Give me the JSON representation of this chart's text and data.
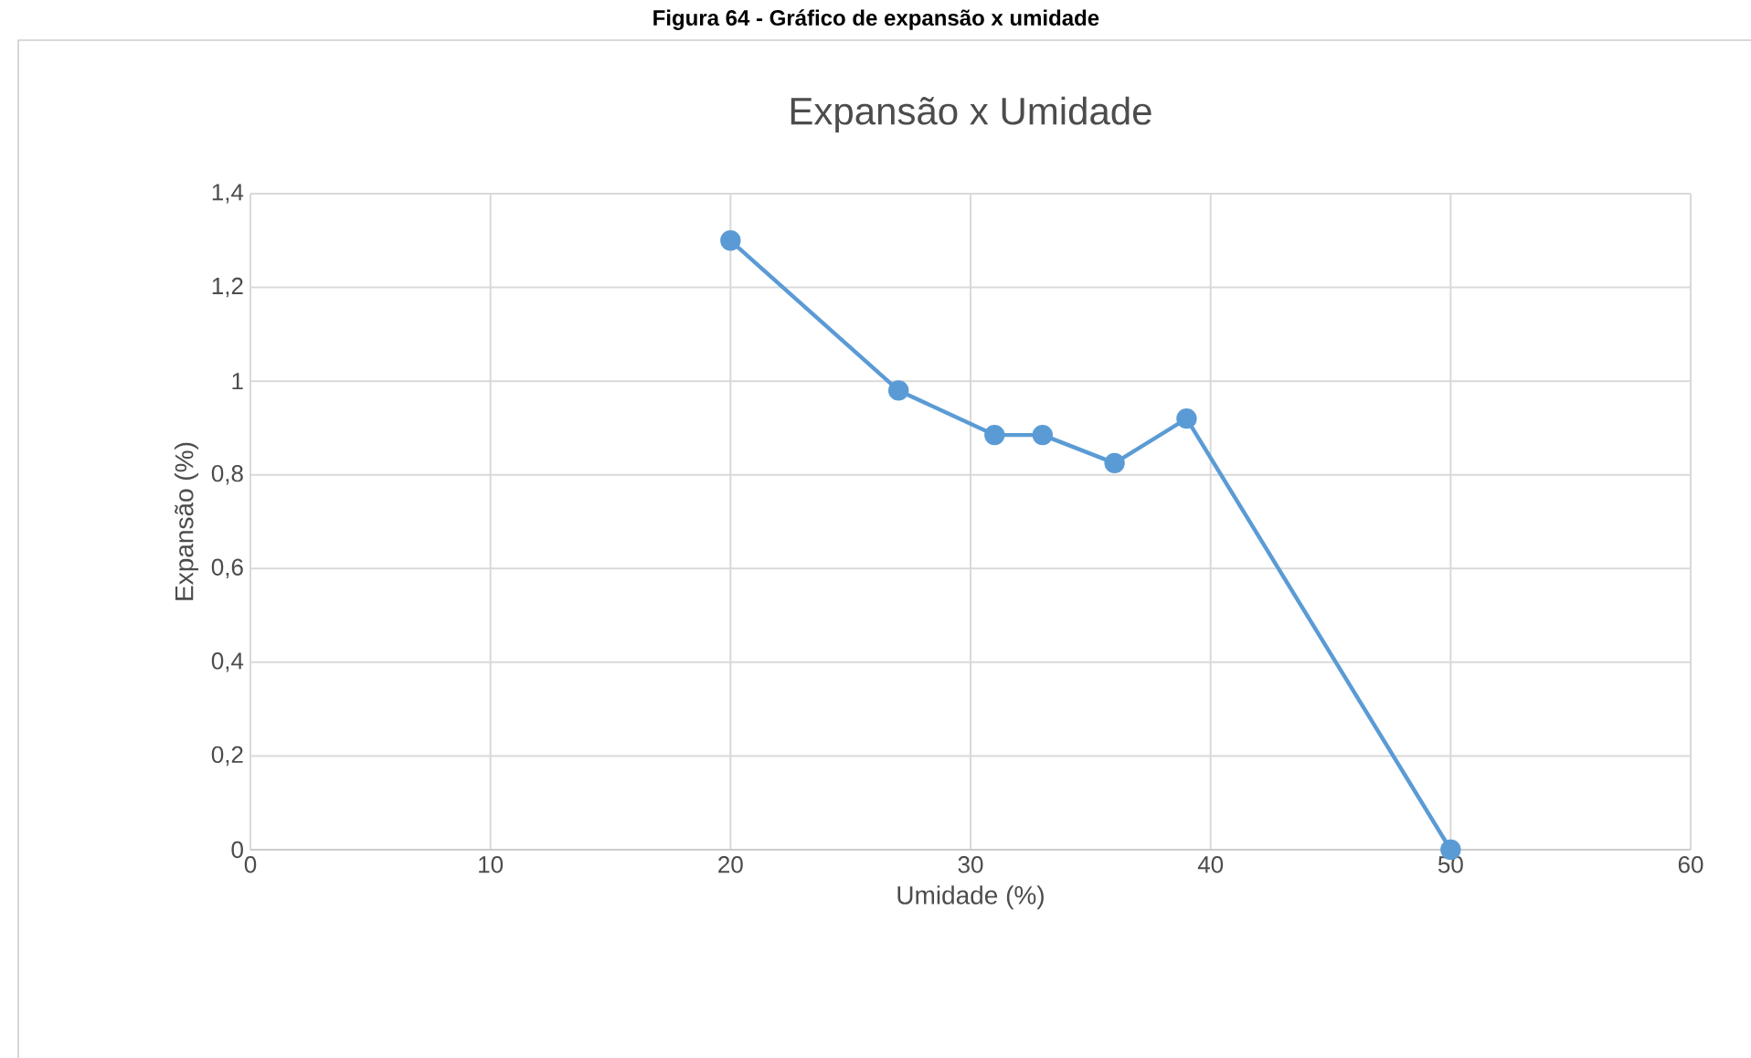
{
  "chart_data": {
    "type": "line",
    "title": "Expansão x Umidade",
    "xlabel": "Umidade (%)",
    "ylabel": "Expansão (%)",
    "annotations": [
      "Figura 64 - Gráfico de expansão x umidade"
    ],
    "x": [
      20,
      27,
      31,
      33,
      36,
      39,
      50
    ],
    "series": [
      {
        "color": "#5b9bd5",
        "values": [
          1.3,
          0.98,
          0.885,
          0.885,
          0.825,
          0.92,
          0
        ]
      }
    ],
    "xlim": [
      0,
      60
    ],
    "xticks": [
      0,
      10,
      20,
      30,
      40,
      50,
      60
    ],
    "ylim": [
      0,
      1.4
    ],
    "yticks": [
      {
        "value": 0,
        "label": "0"
      },
      {
        "value": 0.2,
        "label": "0,2"
      },
      {
        "value": 0.4,
        "label": "0,4"
      },
      {
        "value": 0.6,
        "label": "0,6"
      },
      {
        "value": 0.8,
        "label": "0,8"
      },
      {
        "value": 1,
        "label": "1"
      },
      {
        "value": 1.2,
        "label": "1,2"
      },
      {
        "value": 1.4,
        "label": "1,4"
      }
    ],
    "grid": true,
    "marker": "circle",
    "line_style": "solid"
  }
}
